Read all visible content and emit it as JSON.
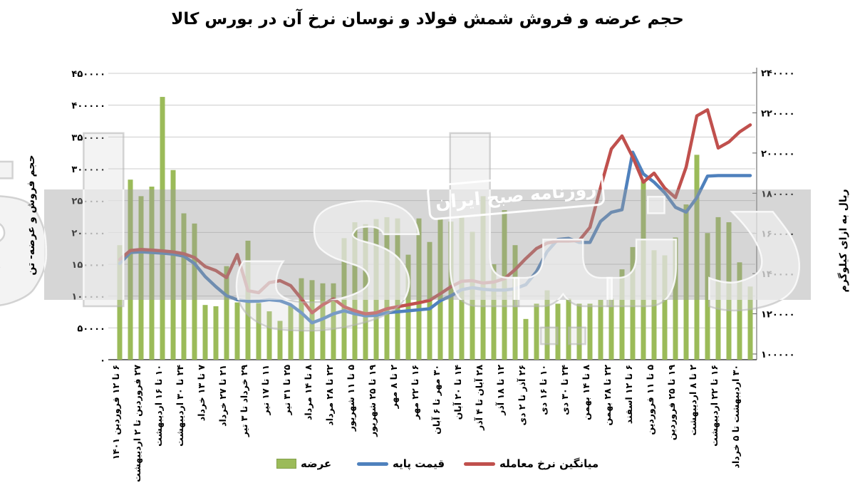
{
  "title": "حجم عرضه و فروش شمش فولاد و نوسان نرخ آن در بورس کالا",
  "watermark": {
    "logo_text": "دنیای اقتصاد",
    "band_text": "روزنامه صبح ایران"
  },
  "left_axis": {
    "title": "حجم فروش و عرضه- تن",
    "ticks": [
      "۴۵۰۰۰۰",
      "۴۰۰۰۰۰",
      "۳۵۰۰۰۰",
      "۳۰۰۰۰۰",
      "۲۵۰۰۰۰",
      "۲۰۰۰۰۰",
      "۱۵۰۰۰۰",
      "۱۰۰۰۰۰",
      "۵۰۰۰۰",
      "۰"
    ]
  },
  "right_axis": {
    "title": "ریال به ازای کیلوگرم",
    "ticks": [
      "۲۴۰۰۰۰",
      "۲۲۰۰۰۰",
      "۲۰۰۰۰۰",
      "۱۸۰۰۰۰",
      "۱۶۰۰۰۰",
      "۱۴۰۰۰۰",
      "۱۲۰۰۰۰",
      "۱۰۰۰۰۰"
    ]
  },
  "legend": [
    {
      "label": "عرضه",
      "color": "#9BBB59",
      "type": "box"
    },
    {
      "label": "قیمت پایه",
      "color": "#4F81BD",
      "type": "line"
    },
    {
      "label": "میانگین نرخ معامله",
      "color": "#C0504D",
      "type": "line"
    }
  ],
  "colors": {
    "bar": "#9BBB59",
    "base_price_line": "#4F81BD",
    "avg_rate_line": "#C0504D",
    "grid": "#CCCCCC",
    "axis": "#595959"
  },
  "chart_data": {
    "type": "bar+line combo",
    "n_points": 60,
    "x_label_interval": 2,
    "x_tick_labels": [
      "۶ تا ۱۲ فروردین ۱۴۰۱",
      "۲۷ فروردین تا ۲ اردیبهشت",
      "۱۰ تا ۱۶ اردیبهشت",
      "۲۴ تا ۳۰ اردیبهشت",
      "۷ تا ۱۳ خرداد",
      "۲۱ تا ۲۷ خرداد",
      "۲۹ خرداد تا ۳ تیر",
      "۱۱ تا ۱۷ تیر",
      "۲۵ تا ۳۱ تیر",
      "۸ تا ۱۴ مرداد",
      "۲۲ تا ۲۸ مرداد",
      "۵ تا ۱۱ شهریور",
      "۱۹ تا ۲۵ شهریور",
      "۲ تا ۸ مهر",
      "۱۶ تا ۲۲ مهر",
      "۳۰ مهر تا ۶ آبان",
      "۱۴ تا ۲۰ آبان",
      "۲۸ آبان تا ۴ آذر",
      "۱۲ تا ۱۸ آذر",
      "۲۶ آذر تا ۲ دی",
      "۱۰ تا ۱۶ دی",
      "۲۴ تا ۳۰ دی",
      "۸ تا ۱۴ بهمن",
      "۲۲ تا ۲۸ بهمن",
      "۶ تا ۱۲ اسفند",
      "۵ تا ۱۱ فروردین",
      "۱۹ تا ۲۵ فروردین",
      "۲ تا ۸ اردیبهشت",
      "۱۶ تا ۲۲ اردیبهشت",
      "۳۰ اردیبهشت تا ۵ خرداد"
    ],
    "left_ylim": [
      0,
      450000
    ],
    "right_ylim": [
      100000,
      240000
    ],
    "series": [
      {
        "name": "عرضه",
        "type": "bar",
        "axis": "left",
        "color": "#9BBB59",
        "values": [
          180000,
          283000,
          257000,
          272000,
          413000,
          298000,
          230000,
          214000,
          86000,
          84000,
          147000,
          90000,
          187000,
          89000,
          76000,
          61000,
          85000,
          128000,
          125000,
          120000,
          120000,
          191000,
          216000,
          213000,
          221000,
          224000,
          222000,
          165000,
          222000,
          185000,
          222000,
          217000,
          226000,
          201000,
          257000,
          150000,
          235000,
          180000,
          64000,
          88000,
          109000,
          88000,
          96000,
          88000,
          88000,
          94000,
          96000,
          142000,
          177000,
          283000,
          172000,
          164000,
          192000,
          244000,
          322000,
          199000,
          224000,
          216000,
          153000,
          115000
        ]
      },
      {
        "name": "قیمت پایه",
        "type": "line",
        "axis": "right",
        "color": "#4F81BD",
        "values": [
          145000,
          150500,
          150800,
          150500,
          150200,
          149700,
          148700,
          145000,
          138500,
          133500,
          129000,
          127000,
          126200,
          126300,
          127000,
          126500,
          124500,
          120500,
          115500,
          117500,
          120000,
          121500,
          120000,
          119000,
          119200,
          120500,
          121000,
          121500,
          122000,
          122500,
          126500,
          129000,
          132000,
          133000,
          132200,
          131800,
          131800,
          132500,
          134500,
          141000,
          151000,
          157000,
          157500,
          155500,
          155500,
          166000,
          170500,
          171800,
          200400,
          189600,
          185500,
          180200,
          173000,
          170600,
          177800,
          188500,
          188800,
          188800,
          188800,
          188800
        ]
      },
      {
        "name": "میانگین نرخ معامله",
        "type": "line",
        "axis": "right",
        "color": "#C0504D",
        "values": [
          147000,
          151500,
          152000,
          151700,
          151300,
          150800,
          149900,
          148000,
          143500,
          141500,
          138000,
          149500,
          131500,
          130500,
          135500,
          136500,
          134000,
          127500,
          120500,
          124500,
          127500,
          123500,
          121500,
          120000,
          120500,
          122500,
          123500,
          124500,
          125500,
          126700,
          130000,
          133500,
          136200,
          136500,
          135300,
          135800,
          137500,
          142000,
          147500,
          152500,
          155200,
          156200,
          156200,
          156500,
          163000,
          183000,
          202000,
          208500,
          198000,
          185500,
          190000,
          182500,
          177800,
          193000,
          218500,
          221500,
          202500,
          205500,
          210500,
          214000
        ]
      }
    ]
  }
}
